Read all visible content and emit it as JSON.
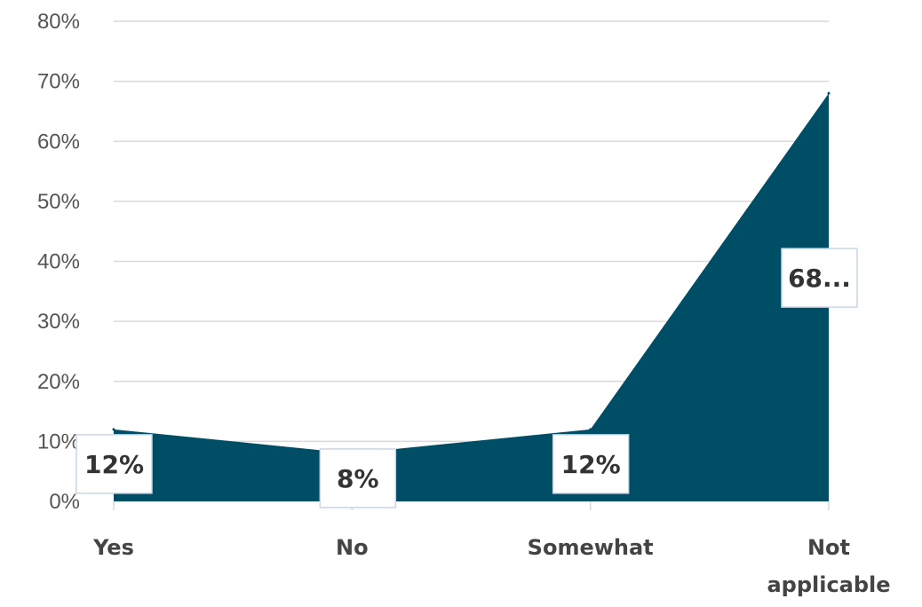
{
  "chart_data": {
    "type": "area",
    "categories": [
      "Yes",
      "No",
      "Somewhat",
      "Not applicable"
    ],
    "values": [
      12,
      8,
      12,
      68
    ],
    "data_labels": [
      "12%",
      "8%",
      "12%",
      "68..."
    ],
    "y_ticks": [
      "0%",
      "10%",
      "20%",
      "30%",
      "40%",
      "50%",
      "60%",
      "70%",
      "80%"
    ],
    "ylim": [
      0,
      80
    ],
    "grid": true,
    "legend": "none",
    "colors": {
      "area": "#004d66",
      "grid": "#d9d9d9",
      "axis_text": "#555555"
    }
  }
}
